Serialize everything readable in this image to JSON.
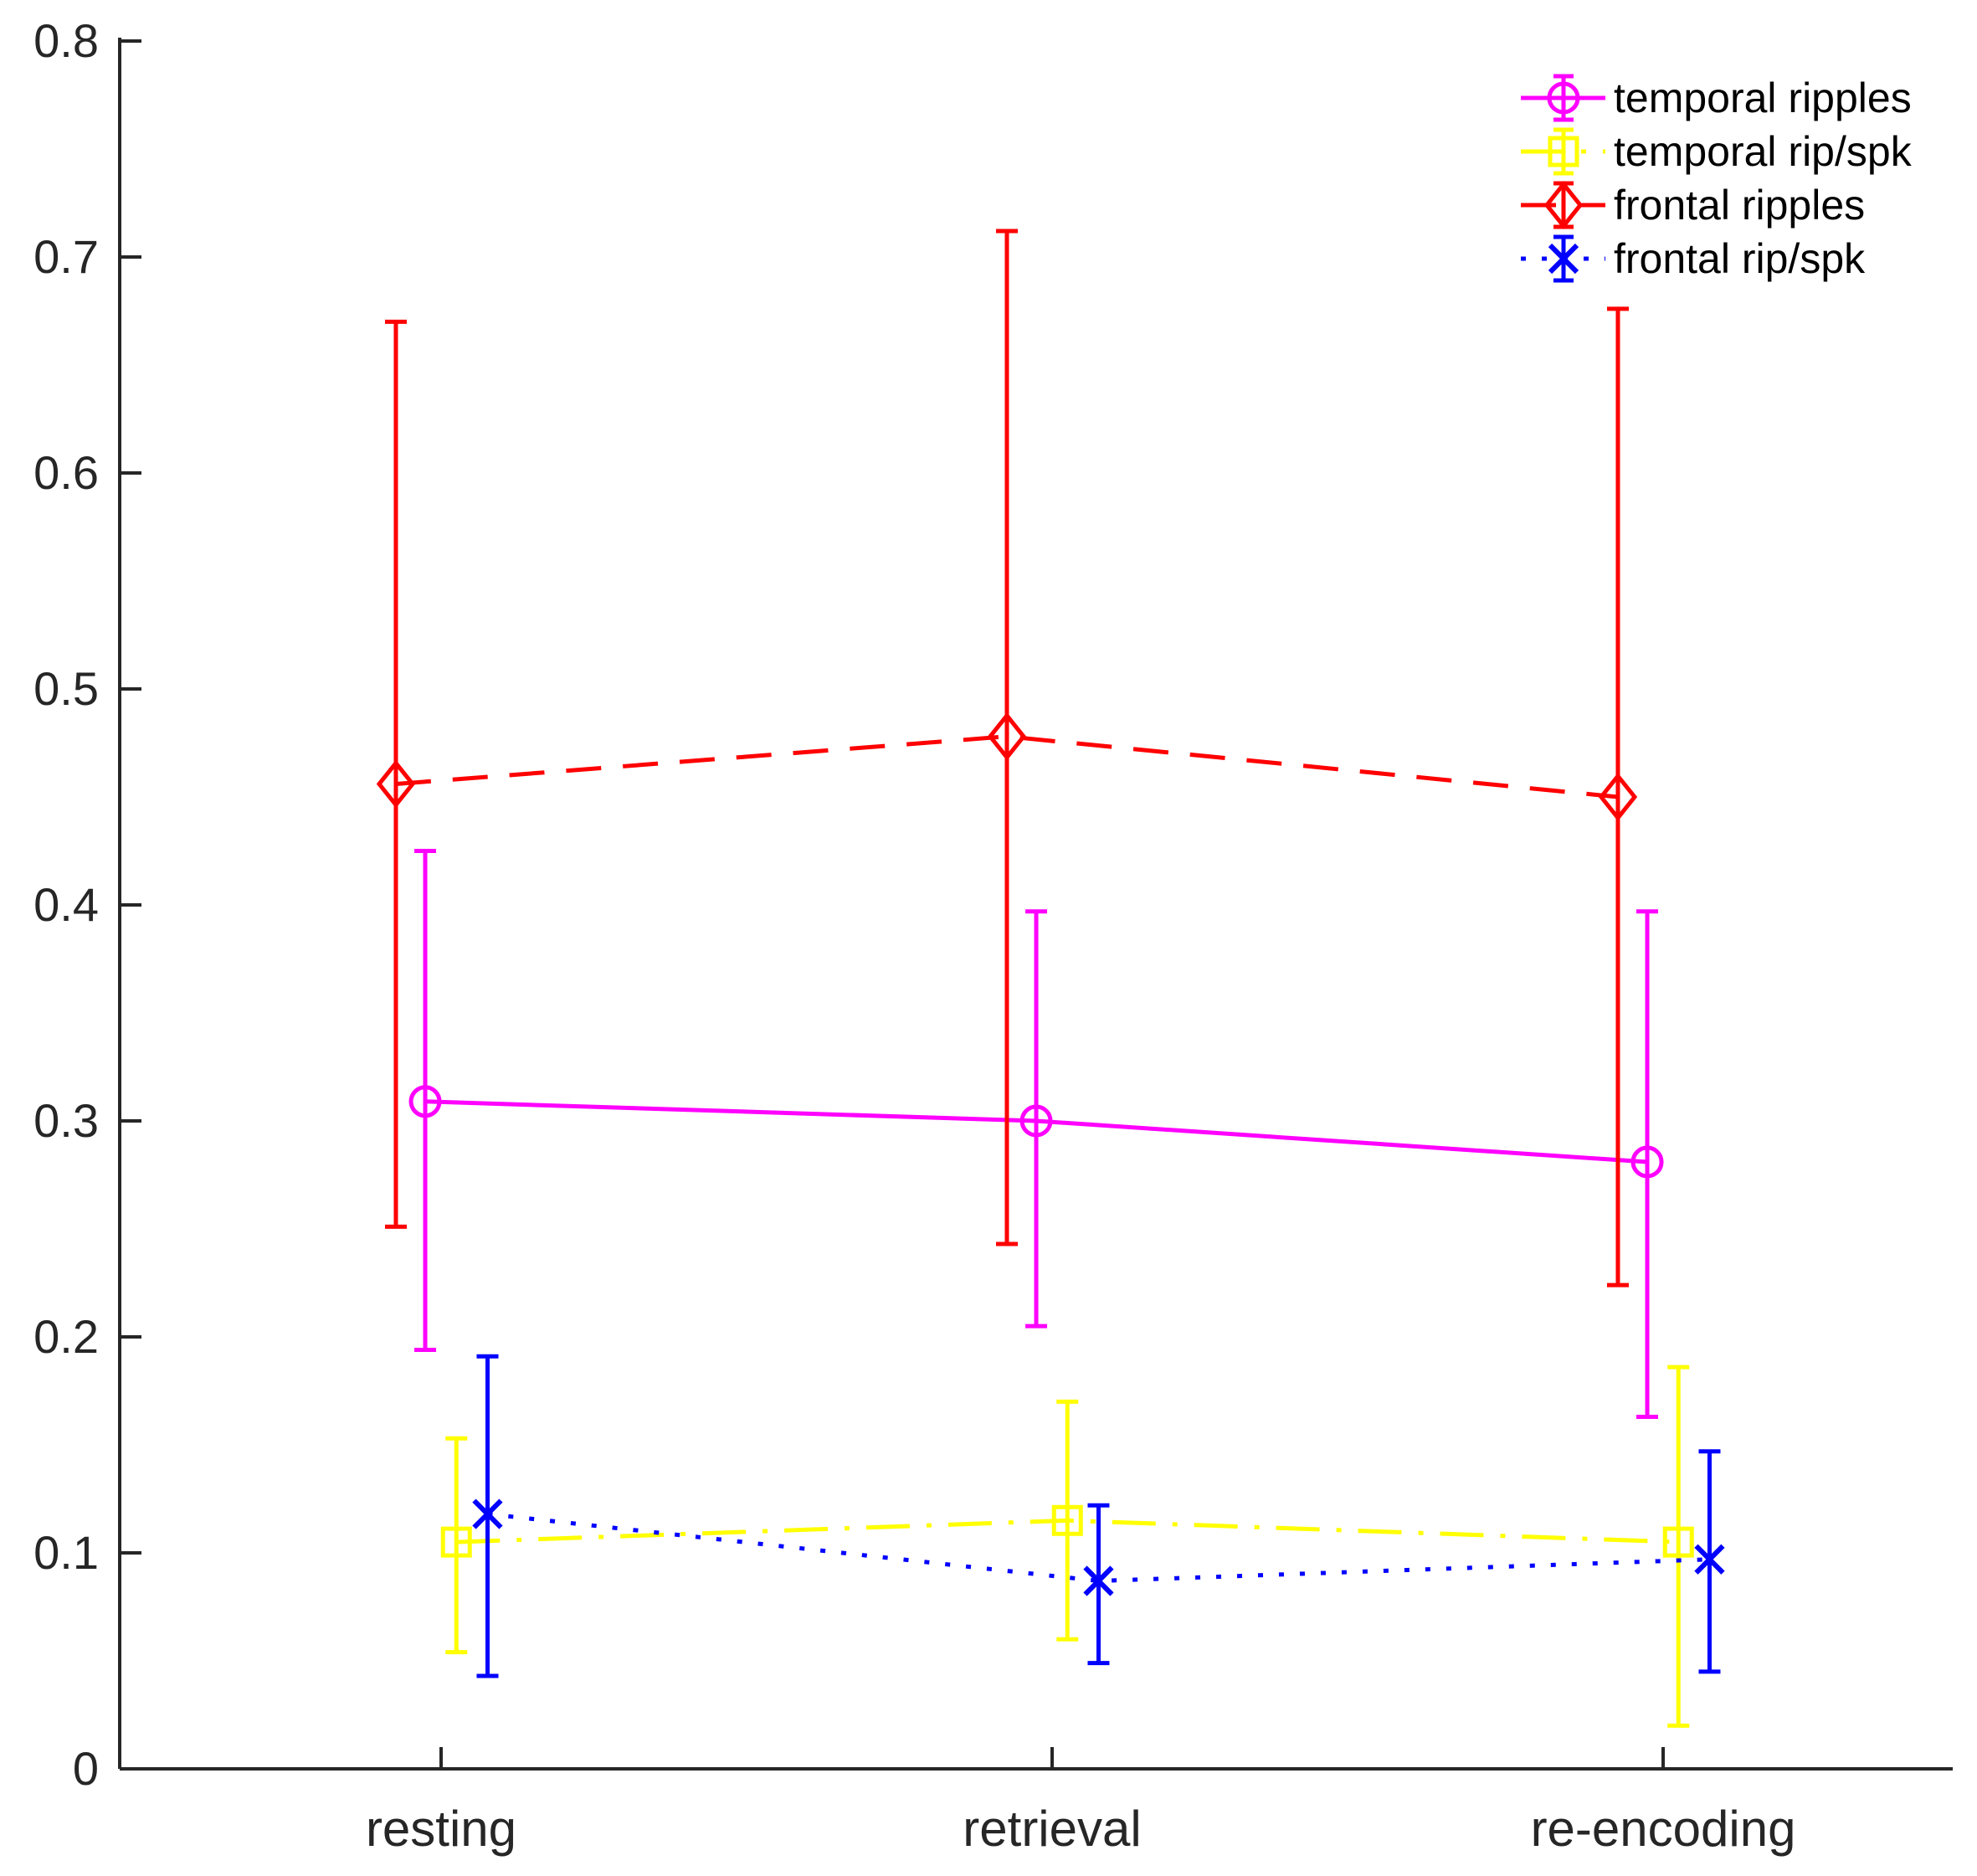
{
  "chart_data": {
    "type": "line",
    "title": "",
    "xlabel": "",
    "ylabel": "",
    "categories": [
      "resting",
      "retrieval",
      "re-encoding"
    ],
    "x_positions": [
      1,
      2,
      3
    ],
    "xlim": [
      0.47,
      3.47
    ],
    "ylim": [
      0,
      0.8
    ],
    "yticks": [
      "0",
      "0.1",
      "0.2",
      "0.3",
      "0.4",
      "0.5",
      "0.6",
      "0.7",
      "0.8"
    ],
    "ytick_values": [
      0,
      0.1,
      0.2,
      0.3,
      0.4,
      0.5,
      0.6,
      0.7,
      0.8
    ],
    "grid": false,
    "box": false,
    "legend_position": "top-right",
    "legend_frame": false,
    "axis_color": "#262626",
    "tick_label_color": "#262626",
    "legend_text_color": "#000000",
    "background": "#ffffff",
    "series": [
      {
        "name": "temporal ripples",
        "color": "#ff00ff",
        "line_style": "solid",
        "marker": "circle",
        "values": [
          0.309,
          0.3,
          0.281
        ],
        "err_low": [
          0.194,
          0.205,
          0.163
        ],
        "err_high": [
          0.425,
          0.397,
          0.397
        ],
        "x_offset": -0.026
      },
      {
        "name": "temporal rip/spk",
        "color": "#ffff00",
        "line_style": "dash-dot",
        "marker": "square",
        "values": [
          0.105,
          0.115,
          0.105
        ],
        "err_low": [
          0.054,
          0.06,
          0.02
        ],
        "err_high": [
          0.153,
          0.17,
          0.186
        ],
        "x_offset": 0.025
      },
      {
        "name": "frontal ripples",
        "color": "#ff0000",
        "line_style": "dashed",
        "marker": "diamond",
        "values": [
          0.456,
          0.478,
          0.45
        ],
        "err_low": [
          0.251,
          0.243,
          0.224
        ],
        "err_high": [
          0.67,
          0.712,
          0.676
        ],
        "x_offset": -0.074
      },
      {
        "name": "frontal rip/spk",
        "color": "#0000ff",
        "line_style": "dotted",
        "marker": "x",
        "values": [
          0.118,
          0.087,
          0.097
        ],
        "err_low": [
          0.043,
          0.049,
          0.045
        ],
        "err_high": [
          0.191,
          0.122,
          0.147
        ],
        "x_offset": 0.076
      }
    ]
  }
}
